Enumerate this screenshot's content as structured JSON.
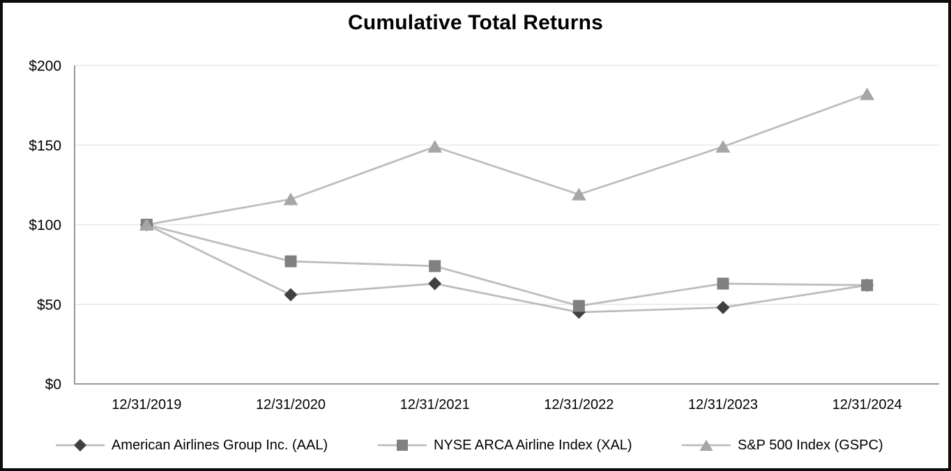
{
  "chart_data": {
    "type": "line",
    "title": "Cumulative Total Returns",
    "xlabel": "",
    "ylabel": "",
    "categories": [
      "12/31/2019",
      "12/31/2020",
      "12/31/2021",
      "12/31/2022",
      "12/31/2023",
      "12/31/2024"
    ],
    "series": [
      {
        "id": "aal",
        "name": "American Airlines Group Inc. (AAL)",
        "marker": "diamond",
        "marker_color": "#404040",
        "line_color": "#bdbdbd",
        "values": [
          100,
          56,
          63,
          45,
          48,
          62
        ]
      },
      {
        "id": "xal",
        "name": "NYSE ARCA Airline Index (XAL)",
        "marker": "square",
        "marker_color": "#808080",
        "line_color": "#bdbdbd",
        "values": [
          100,
          77,
          74,
          49,
          63,
          62
        ]
      },
      {
        "id": "gspc",
        "name": "S&P 500 Index (GSPC)",
        "marker": "triangle",
        "marker_color": "#a6a6a6",
        "line_color": "#bdbdbd",
        "values": [
          100,
          116,
          149,
          119,
          149,
          182
        ]
      }
    ],
    "ylim": [
      0,
      200
    ],
    "y_axis": {
      "ticks": [
        {
          "label": "$0",
          "value": 0
        },
        {
          "label": "$50",
          "value": 50
        },
        {
          "label": "$100",
          "value": 100
        },
        {
          "label": "$150",
          "value": 150
        },
        {
          "label": "$200",
          "value": 200
        }
      ]
    },
    "grid": "horizontal",
    "legend_position": "bottom",
    "colors": {
      "background": "#ffffff",
      "frame_border": "#0d0d0d",
      "gridline": "#e8e8e8",
      "axis_line": "#999999",
      "text": "#000000"
    }
  }
}
